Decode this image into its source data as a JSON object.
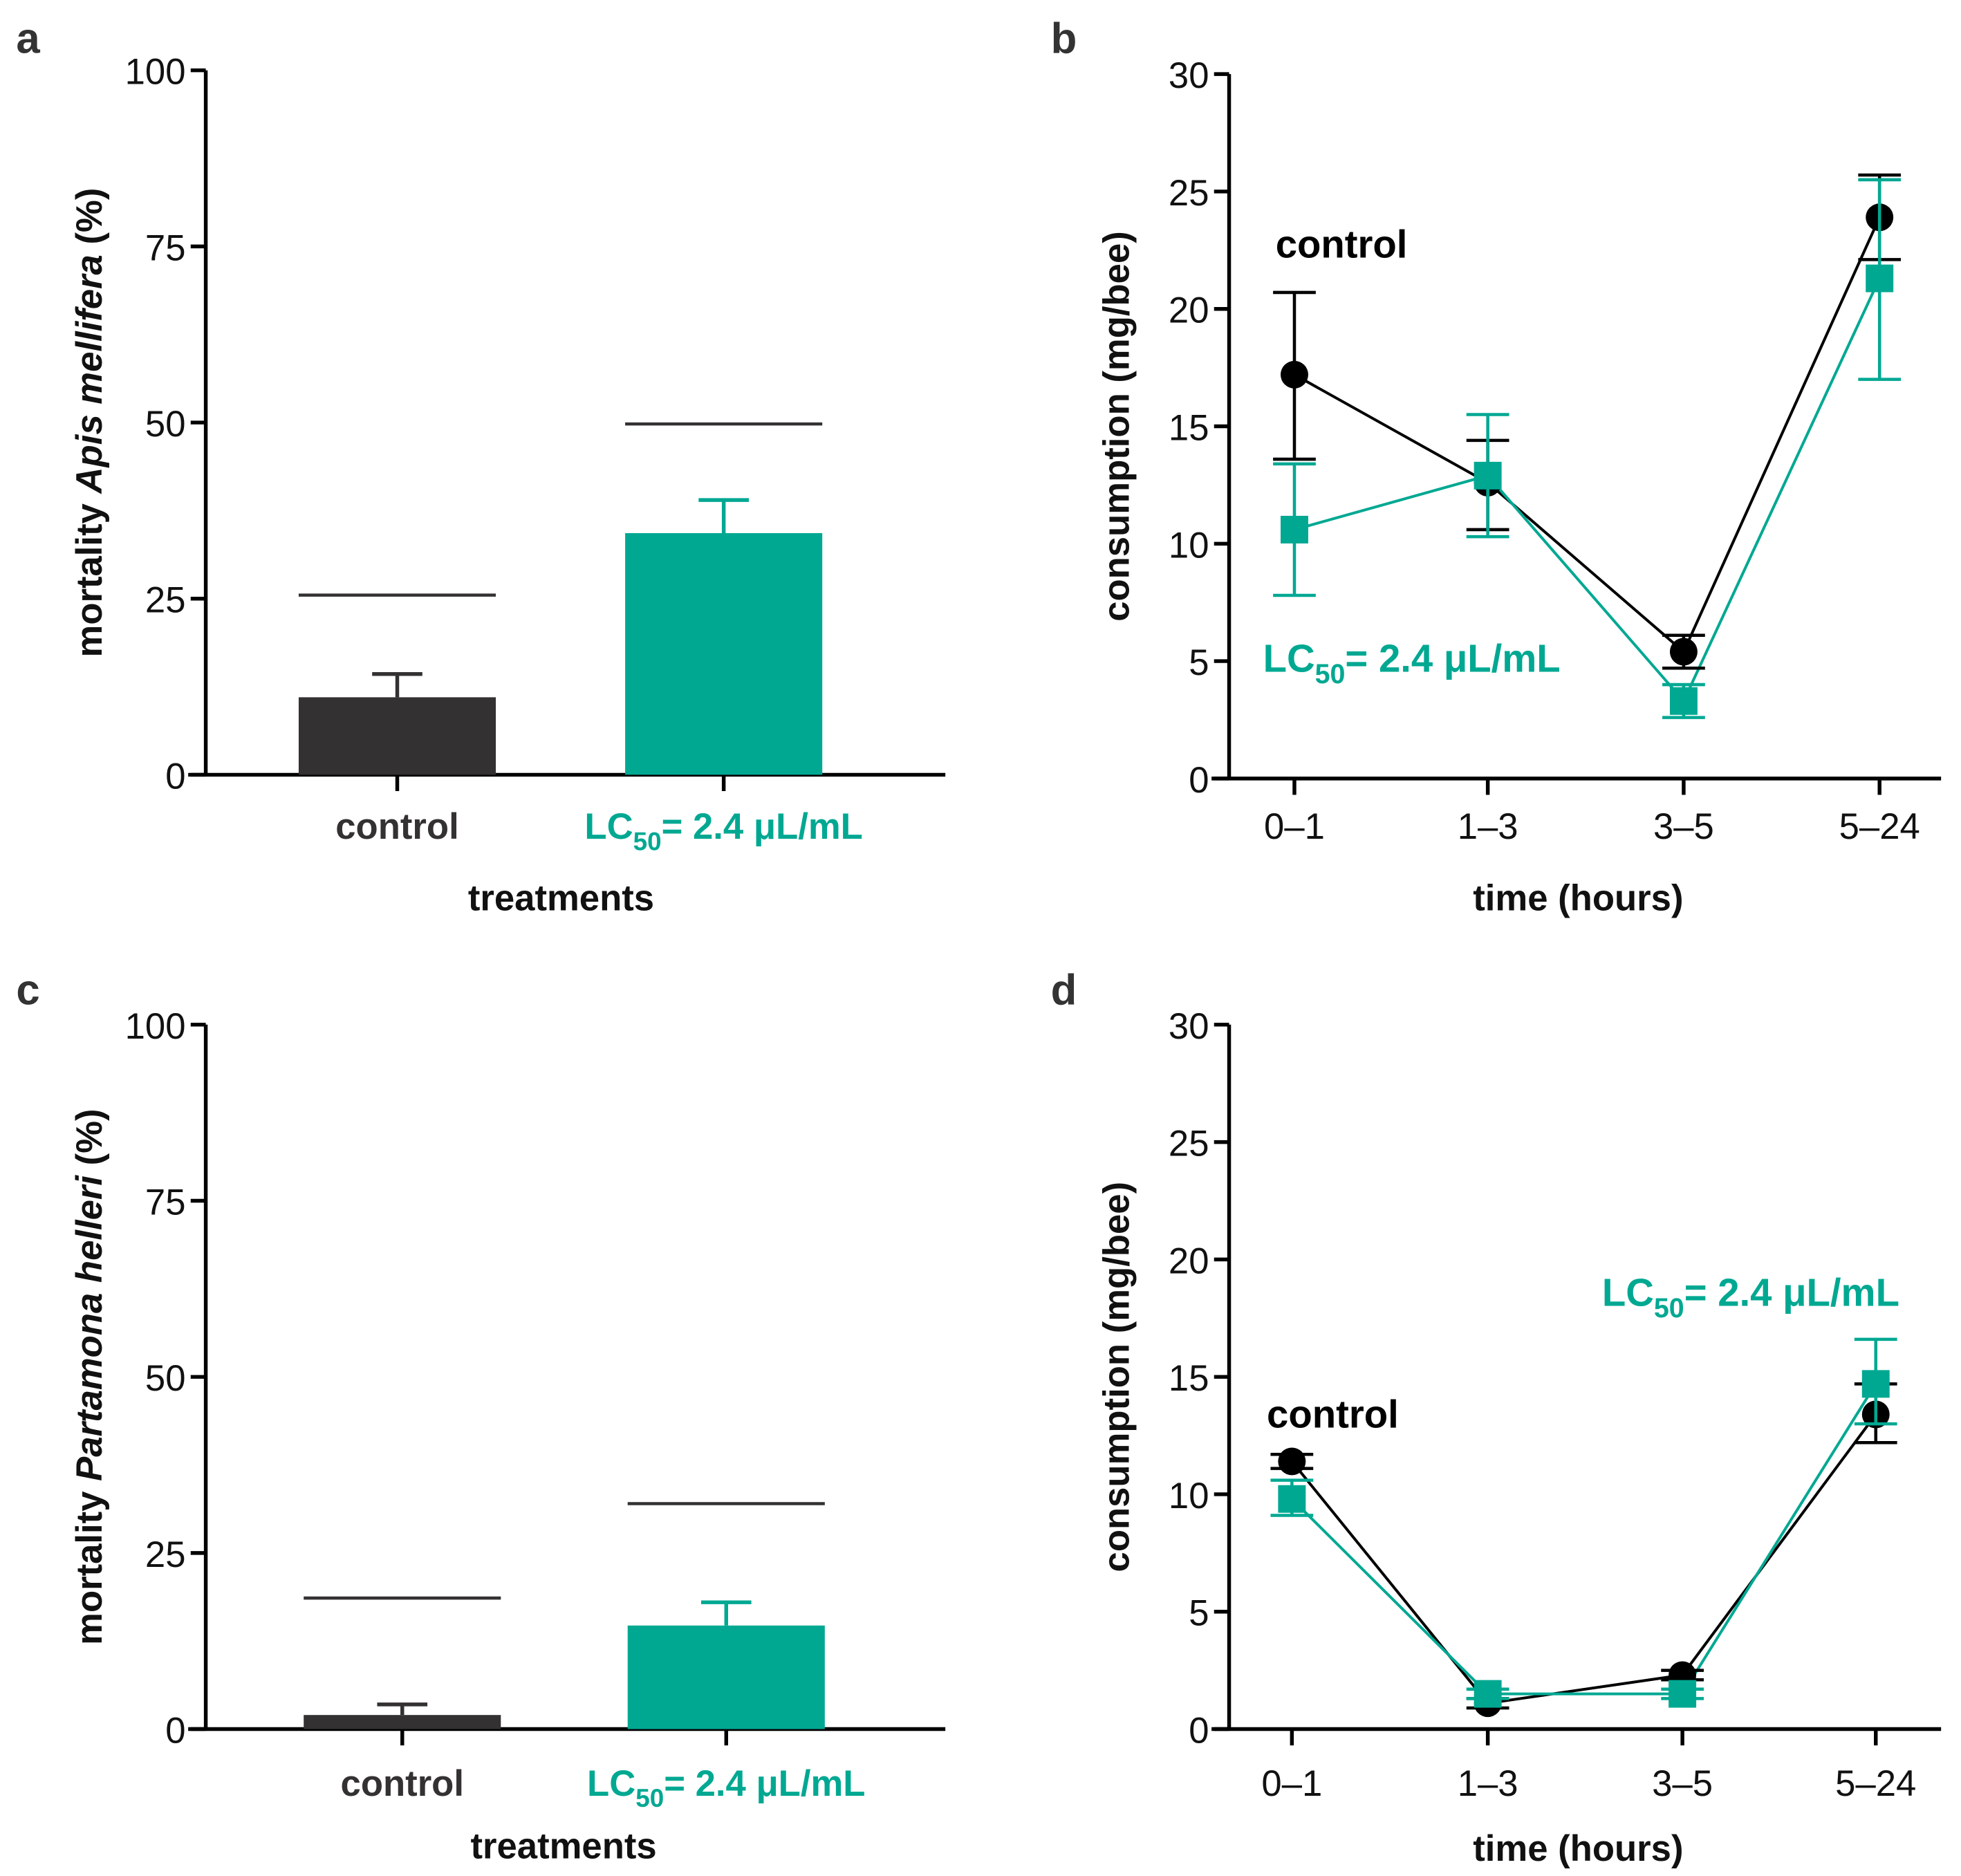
{
  "colors": {
    "control": "#343132",
    "lc50": "#00a892",
    "sig": "#343132"
  },
  "lc50_label": {
    "main": "LC",
    "sub": "50",
    "rest": "= 2.4 μL/mL"
  },
  "chart_data": [
    {
      "panel": "a",
      "type": "bar",
      "ylabel_pre": "mortality ",
      "ylabel_italic": "Apis mellifera",
      "ylabel_post": " (%)",
      "xlabel": "treatments",
      "categories": [
        "control",
        "LC50= 2.4 μL/mL"
      ],
      "values": [
        11,
        34.3
      ],
      "err_upper": [
        14.3,
        39
      ],
      "sig_lines": [
        25.5,
        49.8
      ],
      "ylim": [
        0,
        100
      ],
      "yticks": [
        "0",
        "25",
        "50",
        "75",
        "100"
      ]
    },
    {
      "panel": "b",
      "type": "line",
      "ylabel": "consumption (mg/bee)",
      "xlabel": "time (hours)",
      "categories": [
        "0–1",
        "1–3",
        "3–5",
        "5–24"
      ],
      "ylim": [
        0,
        30
      ],
      "yticks": [
        "0",
        "5",
        "10",
        "15",
        "20",
        "25",
        "30"
      ],
      "series": [
        {
          "name": "control",
          "values": [
            17.2,
            12.6,
            5.4,
            23.9
          ],
          "lo": [
            13.6,
            10.6,
            4.7,
            22.1
          ],
          "hi": [
            20.7,
            14.4,
            6.1,
            25.7
          ]
        },
        {
          "name": "LC50= 2.4 μL/mL",
          "values": [
            10.6,
            12.9,
            3.3,
            21.3
          ],
          "lo": [
            7.8,
            10.3,
            2.6,
            17.0
          ],
          "hi": [
            13.4,
            15.5,
            4.0,
            25.5
          ]
        }
      ]
    },
    {
      "panel": "c",
      "type": "bar",
      "ylabel_pre": "mortality ",
      "ylabel_italic": "Partamona helleri",
      "ylabel_post": " (%)",
      "xlabel": "treatments",
      "categories": [
        "control",
        "LC50= 2.4 μL/mL"
      ],
      "values": [
        2,
        14.7
      ],
      "err_upper": [
        3.5,
        18
      ],
      "sig_lines": [
        18.6,
        32
      ],
      "ylim": [
        0,
        100
      ],
      "yticks": [
        "0",
        "25",
        "50",
        "75",
        "100"
      ]
    },
    {
      "panel": "d",
      "type": "line",
      "ylabel": "consumption (mg/bee)",
      "xlabel": "time (hours)",
      "categories": [
        "0–1",
        "1–3",
        "3–5",
        "5–24"
      ],
      "ylim": [
        0,
        30
      ],
      "yticks": [
        "0",
        "5",
        "10",
        "15",
        "20",
        "25",
        "30"
      ],
      "series": [
        {
          "name": "control",
          "values": [
            11.4,
            1.1,
            2.3,
            13.4
          ],
          "lo": [
            11.1,
            0.9,
            2.1,
            12.2
          ],
          "hi": [
            11.7,
            1.3,
            2.5,
            14.7
          ]
        },
        {
          "name": "LC50= 2.4 μL/mL",
          "values": [
            9.8,
            1.5,
            1.5,
            14.7
          ],
          "lo": [
            9.1,
            1.3,
            1.3,
            13.0
          ],
          "hi": [
            10.6,
            1.7,
            1.7,
            16.6
          ]
        }
      ]
    }
  ]
}
